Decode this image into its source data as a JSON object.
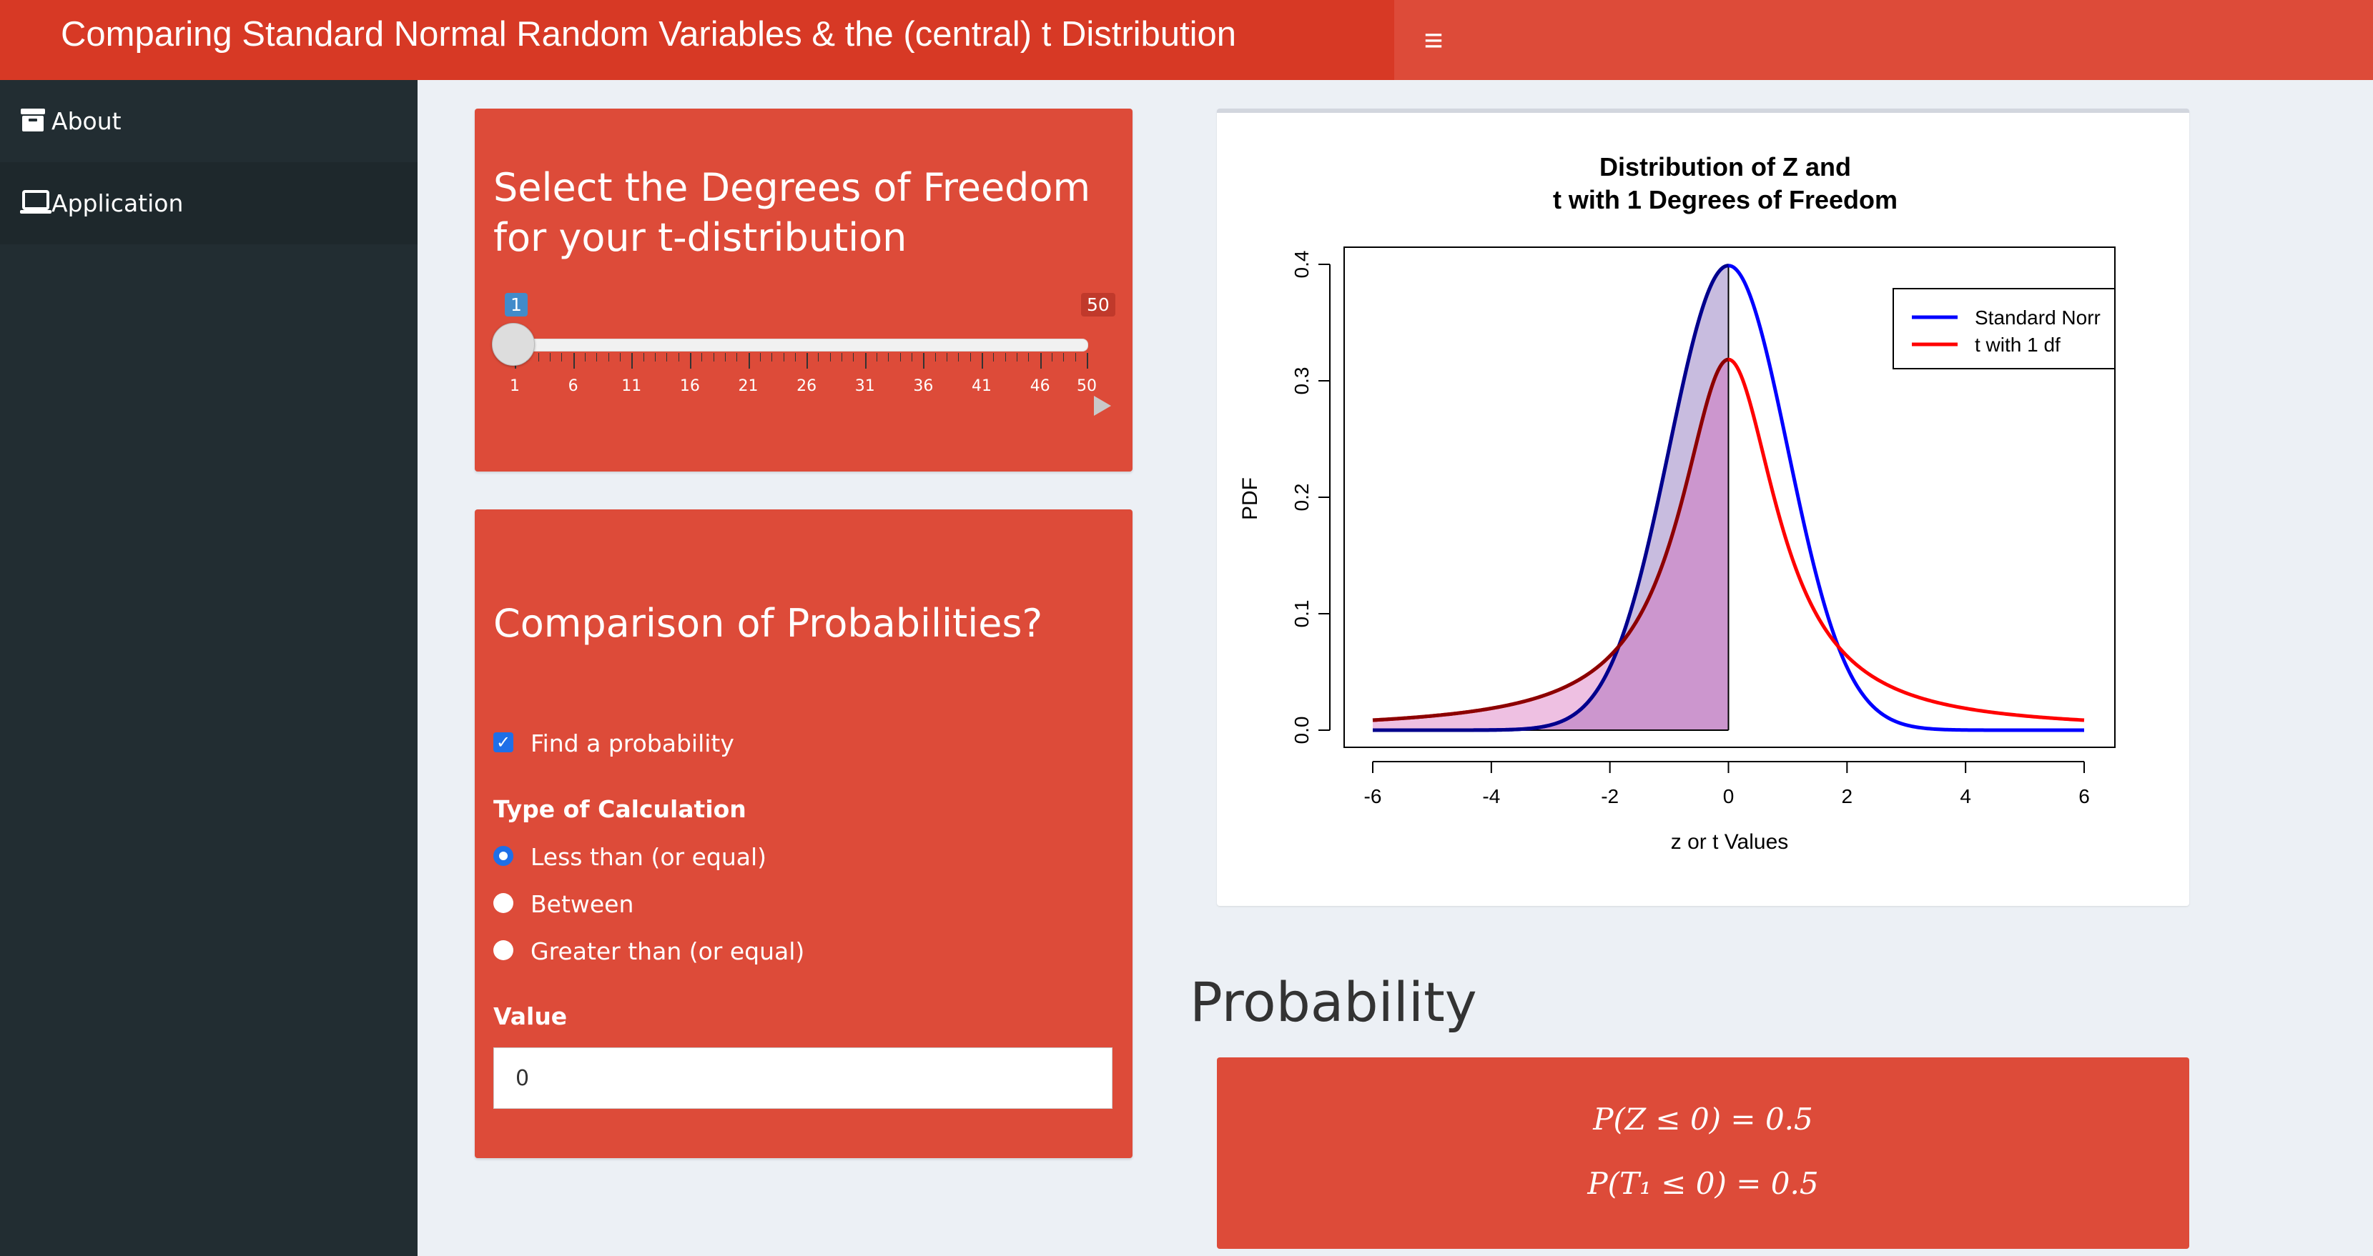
{
  "header": {
    "title": "Comparing Standard Normal Random Variables & the (central) t Distribution",
    "toggle_icon": "≡"
  },
  "sidebar": {
    "items": [
      {
        "label": "About",
        "icon": "archive-icon"
      },
      {
        "label": "Application",
        "icon": "laptop-icon"
      }
    ]
  },
  "df_box": {
    "title_line1": "Select the Degrees of Freedom",
    "title_line2": "for your t-distribution",
    "slider": {
      "min": 1,
      "max": 50,
      "value": 1,
      "min_label": "1",
      "max_label": "50",
      "tick_labels": [
        "1",
        "6",
        "11",
        "16",
        "21",
        "26",
        "31",
        "36",
        "41",
        "46",
        "50"
      ]
    }
  },
  "prob_box": {
    "title": "Comparison of Probabilities?",
    "checkbox_label": "Find a probability",
    "type_label": "Type of Calculation",
    "options": [
      "Less than (or equal)",
      "Between",
      "Greater than (or equal)"
    ],
    "selected_option": 0,
    "value_label": "Value",
    "value": "0"
  },
  "chart_data": {
    "type": "line",
    "title_line1": "Distribution of Z and",
    "title_line2": "t with 1 Degrees of Freedom",
    "xlabel": "z or t Values",
    "ylabel": "PDF",
    "xlim": [
      -6,
      6
    ],
    "ylim": [
      0,
      0.4
    ],
    "x_ticks": [
      "-6",
      "-4",
      "-2",
      "0",
      "2",
      "4",
      "6"
    ],
    "y_ticks": [
      "0.0",
      "0.1",
      "0.2",
      "0.3",
      "0.4"
    ],
    "series": [
      {
        "name": "Standard Norr",
        "color": "#0000ff",
        "distribution": "standard normal"
      },
      {
        "name": "t with 1 df",
        "color": "#ff0000",
        "distribution": "t, df=1"
      }
    ],
    "shaded_region": {
      "x_from": -6,
      "x_to": 0
    },
    "legend_position": "top-right"
  },
  "results": {
    "heading": "Probability",
    "line1": "P(Z ≤ 0) = 0.5",
    "line2": "P(T₁ ≤ 0) = 0.5"
  }
}
